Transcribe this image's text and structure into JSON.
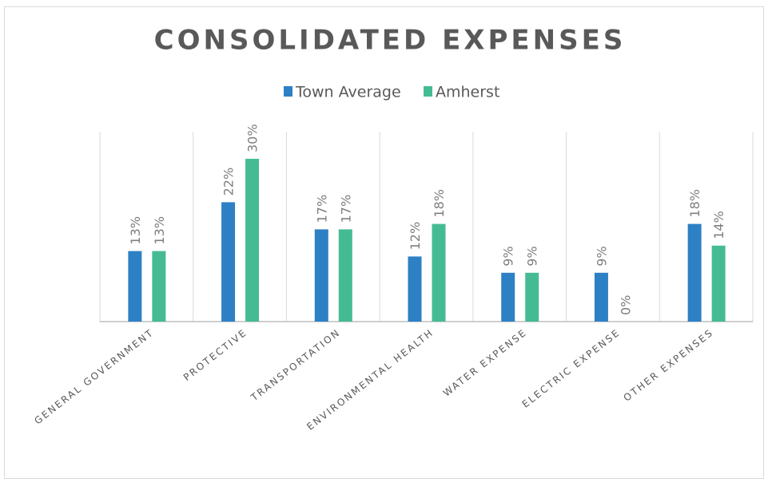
{
  "chart_data": {
    "type": "bar",
    "title": "CONSOLIDATED EXPENSES",
    "categories": [
      "GENERAL GOVERNMENT",
      "PROTECTIVE",
      "TRANSPORTATION",
      "ENVIRONMENTAL HEALTH",
      "WATER EXPENSE",
      "ELECTRIC EXPENSE",
      "OTHER EXPENSES"
    ],
    "series": [
      {
        "name": "Town Average",
        "color": "#2e80c5",
        "values": [
          13,
          22,
          17,
          12,
          9,
          9,
          18
        ],
        "value_labels": [
          "13%",
          "22%",
          "17%",
          "12%",
          "9%",
          "9%",
          "18%"
        ]
      },
      {
        "name": "Amherst",
        "color": "#45bb94",
        "values": [
          13,
          30,
          17,
          18,
          9,
          0,
          14
        ],
        "value_labels": [
          "13%",
          "30%",
          "17%",
          "18%",
          "9%",
          "0%",
          "14%"
        ]
      }
    ],
    "ylim": [
      0,
      35
    ]
  }
}
